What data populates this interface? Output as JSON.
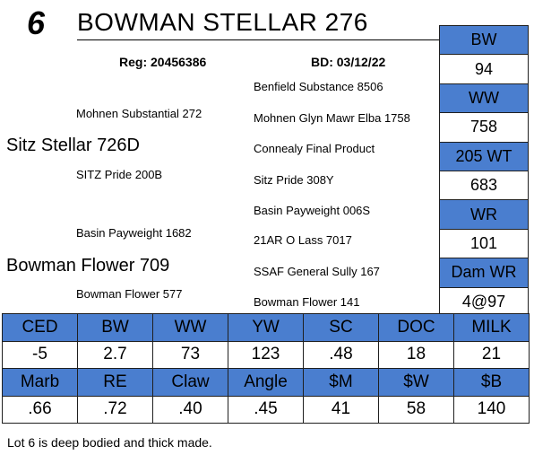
{
  "lot": "6",
  "name": "BOWMAN STELLAR 276",
  "reg": "Reg: 20456386",
  "bd": "BD: 03/12/22",
  "pedigree": {
    "sire": "Sitz Stellar 726D",
    "sire_sire": "Mohnen Substantial 272",
    "sire_dam": "SITZ Pride 200B",
    "ss_sire": "Benfield Substance 8506",
    "ss_dam": "Mohnen Glyn Mawr Elba 1758",
    "sd_sire": "Connealy Final Product",
    "sd_dam": "Sitz Pride 308Y",
    "dam": "Bowman Flower 709",
    "dam_sire": "Basin Payweight 1682",
    "dam_dam": "Bowman Flower 577",
    "ds_sire": "Basin Payweight 006S",
    "ds_dam": "21AR O Lass 7017",
    "dd_sire": "SSAF General Sully 167",
    "dd_dam": "Bowman Flower 141"
  },
  "side_epds": [
    {
      "label": "BW",
      "value": "94"
    },
    {
      "label": "WW",
      "value": "758"
    },
    {
      "label": "205 WT",
      "value": "683"
    },
    {
      "label": "WR",
      "value": "101"
    },
    {
      "label": "Dam WR",
      "value": "4@97"
    }
  ],
  "epd_row1": [
    {
      "label": "CED",
      "value": "-5"
    },
    {
      "label": "BW",
      "value": "2.7"
    },
    {
      "label": "WW",
      "value": "73"
    },
    {
      "label": "YW",
      "value": "123"
    },
    {
      "label": "SC",
      "value": ".48"
    },
    {
      "label": "DOC",
      "value": "18"
    },
    {
      "label": "MILK",
      "value": "21"
    }
  ],
  "epd_row2": [
    {
      "label": "Marb",
      "value": ".66"
    },
    {
      "label": "RE",
      "value": ".72"
    },
    {
      "label": "Claw",
      "value": ".40"
    },
    {
      "label": "Angle",
      "value": ".45"
    },
    {
      "label": "$M",
      "value": "41"
    },
    {
      "label": "$W",
      "value": "58"
    },
    {
      "label": "$B",
      "value": "140"
    }
  ],
  "comment": "Lot 6 is deep bodied and thick made.",
  "colors": {
    "header_blue": "#4a7ecf",
    "border": "#1f1f1f"
  }
}
